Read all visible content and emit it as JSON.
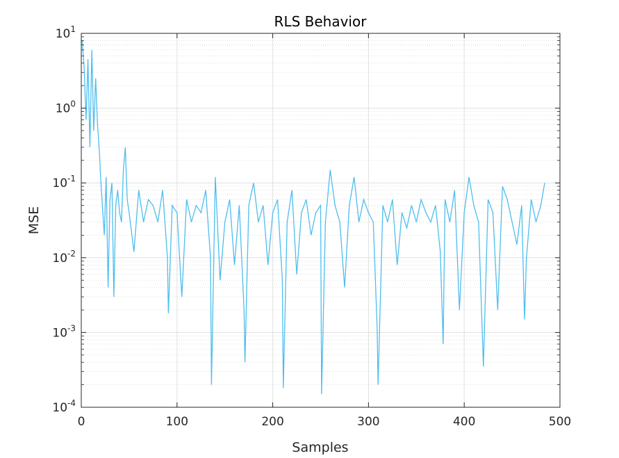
{
  "chart_data": {
    "type": "line",
    "title": "RLS Behavior",
    "xlabel": "Samples",
    "ylabel": "MSE",
    "xlim": [
      0,
      500
    ],
    "ylim": [
      0.0001,
      10
    ],
    "yscale": "log",
    "grid": true,
    "xticks": [
      "0",
      "100",
      "200",
      "300",
      "400",
      "500"
    ],
    "yticks": [
      {
        "base": "10",
        "exp": "1"
      },
      {
        "base": "10",
        "exp": "0"
      },
      {
        "base": "10",
        "exp": "-1"
      },
      {
        "base": "10",
        "exp": "-2"
      },
      {
        "base": "10",
        "exp": "-3"
      },
      {
        "base": "10",
        "exp": "-4"
      }
    ],
    "line_color": "#4DBEEE",
    "series": [
      {
        "x": [
          1,
          3,
          5,
          7,
          9,
          11,
          13,
          15,
          17,
          19,
          20,
          22,
          24,
          26,
          28,
          30,
          32,
          34,
          36,
          38,
          40,
          42,
          44,
          46,
          48,
          50,
          55,
          60,
          65,
          70,
          75,
          80,
          85,
          90,
          91,
          95,
          100,
          105,
          110,
          115,
          120,
          125,
          130,
          135,
          136,
          140,
          145,
          150,
          155,
          160,
          165,
          170,
          171,
          175,
          180,
          185,
          190,
          195,
          200,
          205,
          210,
          211,
          215,
          220,
          225,
          230,
          235,
          240,
          245,
          250,
          251,
          255,
          260,
          265,
          270,
          275,
          280,
          285,
          290,
          295,
          300,
          305,
          309,
          310,
          315,
          320,
          325,
          330,
          335,
          340,
          345,
          350,
          355,
          360,
          365,
          370,
          375,
          378,
          380,
          385,
          390,
          395,
          400,
          405,
          410,
          415,
          420,
          425,
          430,
          435,
          440,
          445,
          450,
          455,
          460,
          463,
          465,
          470,
          475,
          480,
          484
        ],
        "y": [
          8.0,
          3.5,
          0.7,
          4.5,
          0.3,
          6.0,
          0.5,
          2.5,
          0.6,
          0.25,
          0.13,
          0.05,
          0.02,
          0.12,
          0.004,
          0.06,
          0.1,
          0.003,
          0.05,
          0.08,
          0.04,
          0.03,
          0.15,
          0.3,
          0.06,
          0.04,
          0.012,
          0.08,
          0.03,
          0.06,
          0.05,
          0.03,
          0.08,
          0.01,
          0.0018,
          0.05,
          0.04,
          0.003,
          0.06,
          0.03,
          0.05,
          0.04,
          0.08,
          0.01,
          0.0002,
          0.12,
          0.005,
          0.03,
          0.06,
          0.008,
          0.05,
          0.002,
          0.0004,
          0.05,
          0.1,
          0.03,
          0.05,
          0.008,
          0.04,
          0.06,
          0.005,
          0.00018,
          0.03,
          0.08,
          0.006,
          0.04,
          0.06,
          0.02,
          0.04,
          0.05,
          0.00015,
          0.03,
          0.15,
          0.05,
          0.03,
          0.004,
          0.05,
          0.12,
          0.03,
          0.06,
          0.04,
          0.03,
          0.0012,
          0.0002,
          0.05,
          0.03,
          0.06,
          0.008,
          0.04,
          0.025,
          0.05,
          0.03,
          0.06,
          0.04,
          0.03,
          0.05,
          0.012,
          0.0007,
          0.06,
          0.03,
          0.08,
          0.002,
          0.04,
          0.12,
          0.05,
          0.03,
          0.00035,
          0.06,
          0.04,
          0.002,
          0.09,
          0.06,
          0.03,
          0.015,
          0.05,
          0.0015,
          0.01,
          0.06,
          0.03,
          0.05,
          0.1
        ]
      }
    ]
  }
}
